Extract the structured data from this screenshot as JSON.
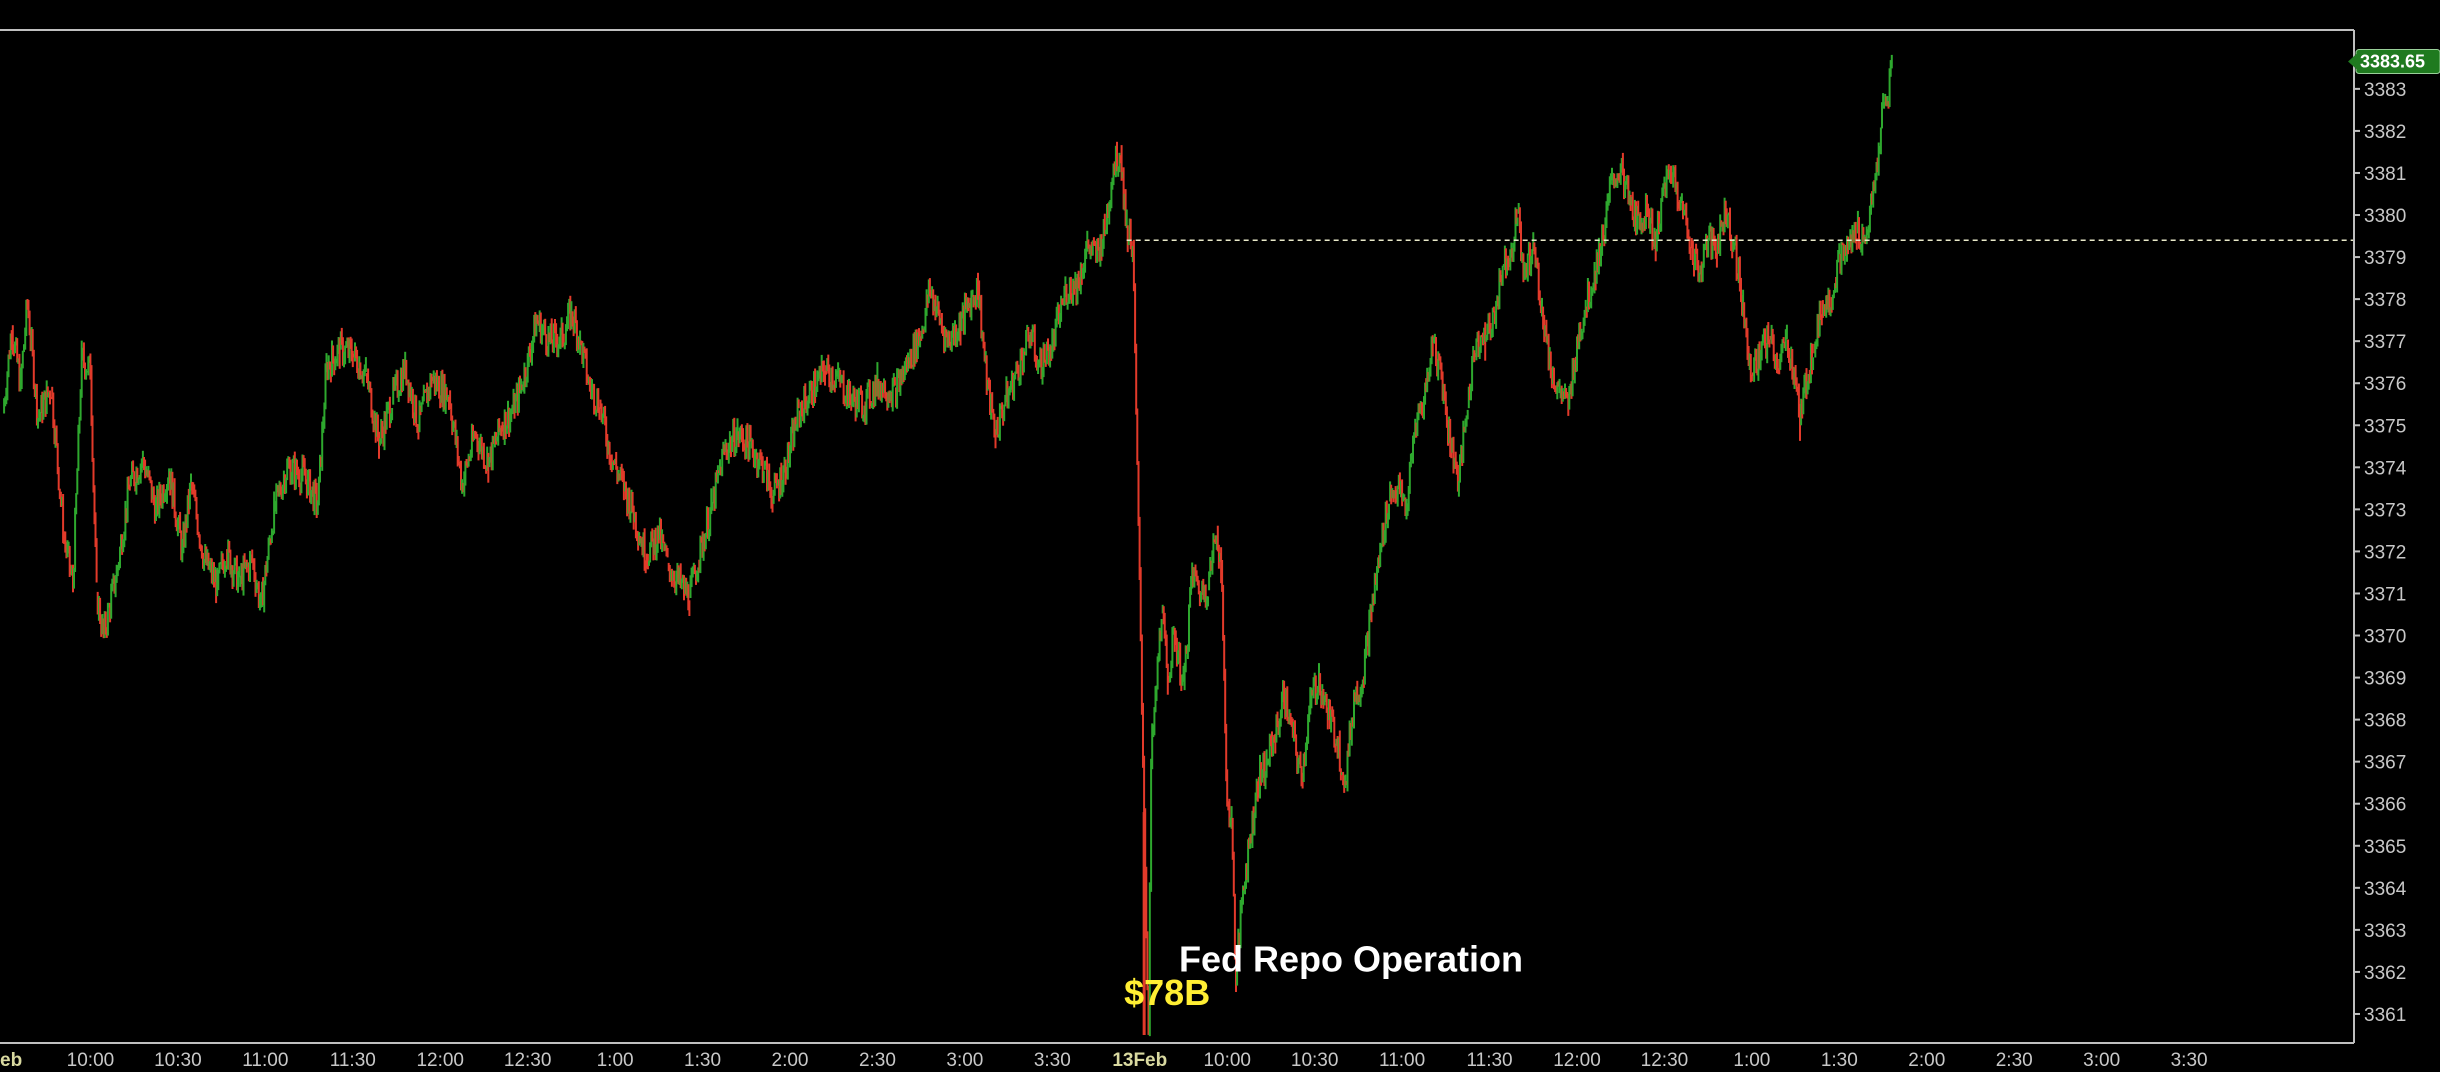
{
  "chart_data": {
    "type": "line",
    "style": "tick-bar",
    "colors": {
      "background": "#000000",
      "up": "#2ea82e",
      "down": "#e23a2a",
      "axis": "#bfbfbf",
      "tick_text": "#c8c8c8",
      "reference_line": "#e8e8c8",
      "price_tag_bg": "#1f7a1f",
      "annotation_amount": "#ffee33",
      "annotation_text": "#ffffff"
    },
    "ylim": [
      3360.5,
      3384.4
    ],
    "y_ticks": [
      3361,
      3362,
      3363,
      3364,
      3365,
      3366,
      3367,
      3368,
      3369,
      3370,
      3371,
      3372,
      3373,
      3374,
      3375,
      3376,
      3377,
      3378,
      3379,
      3380,
      3381,
      3382,
      3383
    ],
    "x_range": [
      0,
      26.92
    ],
    "x_ticks": [
      {
        "x": 0.0,
        "label": "eb",
        "date": true
      },
      {
        "x": 1.0,
        "label": "10:00"
      },
      {
        "x": 2.0,
        "label": "10:30"
      },
      {
        "x": 3.0,
        "label": "11:00"
      },
      {
        "x": 4.0,
        "label": "11:30"
      },
      {
        "x": 5.0,
        "label": "12:00"
      },
      {
        "x": 6.0,
        "label": "12:30"
      },
      {
        "x": 7.0,
        "label": "1:00"
      },
      {
        "x": 8.0,
        "label": "1:30"
      },
      {
        "x": 9.0,
        "label": "2:00"
      },
      {
        "x": 10.0,
        "label": "2:30"
      },
      {
        "x": 11.0,
        "label": "3:00"
      },
      {
        "x": 12.0,
        "label": "3:30"
      },
      {
        "x": 13.0,
        "label": "13Feb",
        "date": true
      },
      {
        "x": 14.0,
        "label": "10:00"
      },
      {
        "x": 15.0,
        "label": "10:30"
      },
      {
        "x": 16.0,
        "label": "11:00"
      },
      {
        "x": 17.0,
        "label": "11:30"
      },
      {
        "x": 18.0,
        "label": "12:00"
      },
      {
        "x": 19.0,
        "label": "12:30"
      },
      {
        "x": 20.0,
        "label": "1:00"
      },
      {
        "x": 21.0,
        "label": "1:30"
      },
      {
        "x": 22.0,
        "label": "2:00"
      },
      {
        "x": 23.0,
        "label": "2:30"
      },
      {
        "x": 24.0,
        "label": "3:00"
      },
      {
        "x": 25.0,
        "label": "3:30"
      }
    ],
    "series": [
      {
        "values": [
          [
            0.0,
            3375.3
          ],
          [
            0.1,
            3377.3
          ],
          [
            0.2,
            3376.0
          ],
          [
            0.28,
            3377.9
          ],
          [
            0.4,
            3375.2
          ],
          [
            0.55,
            3375.9
          ],
          [
            0.7,
            3372.3
          ],
          [
            0.8,
            3371.2
          ],
          [
            0.9,
            3376.6
          ],
          [
            1.0,
            3376.3
          ],
          [
            1.07,
            3371.0
          ],
          [
            1.15,
            3370.0
          ],
          [
            1.3,
            3371.5
          ],
          [
            1.45,
            3373.6
          ],
          [
            1.6,
            3374.2
          ],
          [
            1.75,
            3373.0
          ],
          [
            1.9,
            3373.9
          ],
          [
            2.05,
            3372.0
          ],
          [
            2.15,
            3373.6
          ],
          [
            2.3,
            3371.8
          ],
          [
            2.45,
            3371.2
          ],
          [
            2.55,
            3372.0
          ],
          [
            2.7,
            3371.3
          ],
          [
            2.85,
            3371.8
          ],
          [
            2.95,
            3370.7
          ],
          [
            3.1,
            3373.0
          ],
          [
            3.25,
            3374.0
          ],
          [
            3.45,
            3373.8
          ],
          [
            3.6,
            3373.1
          ],
          [
            3.7,
            3376.4
          ],
          [
            3.85,
            3376.8
          ],
          [
            4.0,
            3376.7
          ],
          [
            4.15,
            3376.2
          ],
          [
            4.3,
            3374.6
          ],
          [
            4.45,
            3375.6
          ],
          [
            4.6,
            3376.4
          ],
          [
            4.75,
            3375.0
          ],
          [
            4.9,
            3376.1
          ],
          [
            5.1,
            3375.7
          ],
          [
            5.25,
            3373.6
          ],
          [
            5.4,
            3374.8
          ],
          [
            5.55,
            3374.1
          ],
          [
            5.7,
            3375.0
          ],
          [
            5.85,
            3375.4
          ],
          [
            6.0,
            3376.5
          ],
          [
            6.1,
            3377.5
          ],
          [
            6.25,
            3377.0
          ],
          [
            6.4,
            3377.1
          ],
          [
            6.5,
            3377.7
          ],
          [
            6.6,
            3377.0
          ],
          [
            6.7,
            3376.0
          ],
          [
            6.82,
            3375.5
          ],
          [
            6.95,
            3374.3
          ],
          [
            7.1,
            3373.5
          ],
          [
            7.2,
            3373.0
          ],
          [
            7.35,
            3371.9
          ],
          [
            7.5,
            3372.4
          ],
          [
            7.6,
            3371.7
          ],
          [
            7.75,
            3371.2
          ],
          [
            7.85,
            3370.9
          ],
          [
            7.95,
            3371.8
          ],
          [
            8.1,
            3373.0
          ],
          [
            8.25,
            3374.4
          ],
          [
            8.4,
            3374.8
          ],
          [
            8.55,
            3374.5
          ],
          [
            8.7,
            3374.0
          ],
          [
            8.8,
            3373.3
          ],
          [
            8.95,
            3374.0
          ],
          [
            9.1,
            3375.3
          ],
          [
            9.25,
            3375.8
          ],
          [
            9.4,
            3376.3
          ],
          [
            9.55,
            3376.1
          ],
          [
            9.7,
            3375.6
          ],
          [
            9.85,
            3375.5
          ],
          [
            10.0,
            3376.0
          ],
          [
            10.2,
            3375.8
          ],
          [
            10.35,
            3376.5
          ],
          [
            10.5,
            3377.2
          ],
          [
            10.6,
            3378.2
          ],
          [
            10.7,
            3377.6
          ],
          [
            10.8,
            3377.0
          ],
          [
            10.95,
            3377.4
          ],
          [
            11.05,
            3377.9
          ],
          [
            11.15,
            3378.3
          ],
          [
            11.25,
            3376.0
          ],
          [
            11.35,
            3374.8
          ],
          [
            11.45,
            3375.5
          ],
          [
            11.6,
            3376.3
          ],
          [
            11.75,
            3377.2
          ],
          [
            11.85,
            3376.4
          ],
          [
            12.0,
            3376.9
          ],
          [
            12.15,
            3378.2
          ],
          [
            12.3,
            3378.4
          ],
          [
            12.4,
            3379.3
          ],
          [
            12.5,
            3379.0
          ],
          [
            12.6,
            3379.6
          ],
          [
            12.7,
            3381.2
          ],
          [
            12.78,
            3381.5
          ],
          [
            12.85,
            3379.7
          ],
          [
            12.92,
            3379.3
          ],
          [
            13.05,
            3365.8
          ],
          [
            13.1,
            3360.5
          ],
          [
            13.13,
            3367.0
          ],
          [
            13.18,
            3368.5
          ],
          [
            13.25,
            3370.6
          ],
          [
            13.32,
            3369.0
          ],
          [
            13.4,
            3370.0
          ],
          [
            13.5,
            3368.8
          ],
          [
            13.6,
            3371.5
          ],
          [
            13.7,
            3371.0
          ],
          [
            13.78,
            3371.2
          ],
          [
            13.88,
            3372.5
          ],
          [
            13.93,
            3371.7
          ],
          [
            14.0,
            3366.0
          ],
          [
            14.05,
            3365.6
          ],
          [
            14.1,
            3361.8
          ],
          [
            14.18,
            3364.0
          ],
          [
            14.25,
            3365.0
          ],
          [
            14.35,
            3366.5
          ],
          [
            14.45,
            3367.0
          ],
          [
            14.55,
            3367.6
          ],
          [
            14.65,
            3368.6
          ],
          [
            14.75,
            3367.6
          ],
          [
            14.85,
            3366.6
          ],
          [
            14.95,
            3368.4
          ],
          [
            15.05,
            3369.0
          ],
          [
            15.15,
            3368.1
          ],
          [
            15.25,
            3367.6
          ],
          [
            15.35,
            3366.5
          ],
          [
            15.45,
            3368.5
          ],
          [
            15.55,
            3369.0
          ],
          [
            15.65,
            3370.6
          ],
          [
            15.75,
            3372.0
          ],
          [
            15.85,
            3373.3
          ],
          [
            15.95,
            3373.5
          ],
          [
            16.05,
            3373.0
          ],
          [
            16.15,
            3375.0
          ],
          [
            16.25,
            3375.6
          ],
          [
            16.35,
            3377.0
          ],
          [
            16.45,
            3376.2
          ],
          [
            16.55,
            3374.6
          ],
          [
            16.65,
            3373.7
          ],
          [
            16.75,
            3375.5
          ],
          [
            16.85,
            3377.1
          ],
          [
            16.95,
            3377.0
          ],
          [
            17.05,
            3377.6
          ],
          [
            17.15,
            3378.8
          ],
          [
            17.25,
            3379.2
          ],
          [
            17.32,
            3380.1
          ],
          [
            17.4,
            3378.5
          ],
          [
            17.5,
            3379.3
          ],
          [
            17.6,
            3377.8
          ],
          [
            17.7,
            3376.3
          ],
          [
            17.8,
            3375.8
          ],
          [
            17.9,
            3375.4
          ],
          [
            18.0,
            3377.0
          ],
          [
            18.1,
            3377.8
          ],
          [
            18.2,
            3378.6
          ],
          [
            18.3,
            3379.5
          ],
          [
            18.4,
            3380.8
          ],
          [
            18.5,
            3381.1
          ],
          [
            18.6,
            3380.3
          ],
          [
            18.7,
            3379.8
          ],
          [
            18.8,
            3380.2
          ],
          [
            18.9,
            3379.3
          ],
          [
            19.0,
            3380.7
          ],
          [
            19.1,
            3381.0
          ],
          [
            19.2,
            3380.2
          ],
          [
            19.3,
            3379.3
          ],
          [
            19.4,
            3378.6
          ],
          [
            19.5,
            3379.4
          ],
          [
            19.6,
            3379.2
          ],
          [
            19.7,
            3380.1
          ],
          [
            19.8,
            3379.3
          ],
          [
            19.9,
            3377.8
          ],
          [
            20.0,
            3376.2
          ],
          [
            20.1,
            3376.7
          ],
          [
            20.2,
            3377.1
          ],
          [
            20.3,
            3376.4
          ],
          [
            20.4,
            3377.0
          ],
          [
            20.5,
            3376.1
          ],
          [
            20.55,
            3375.0
          ],
          [
            20.6,
            3375.8
          ],
          [
            20.7,
            3376.8
          ],
          [
            20.8,
            3377.8
          ],
          [
            20.9,
            3378.0
          ],
          [
            21.0,
            3378.9
          ],
          [
            21.1,
            3379.2
          ],
          [
            21.2,
            3379.6
          ],
          [
            21.3,
            3379.4
          ],
          [
            21.4,
            3380.6
          ],
          [
            21.45,
            3381.5
          ],
          [
            21.5,
            3382.6
          ],
          [
            21.55,
            3382.7
          ],
          [
            21.6,
            3383.65
          ]
        ]
      }
    ],
    "reference_line": {
      "y": 3379.4,
      "x_from": 12.85
    },
    "last_price": {
      "value": 3383.65,
      "label": "3383.65"
    },
    "annotations": [
      {
        "text": "$78B",
        "x": 13.45,
        "y": 3361.5,
        "color": "#ffee33"
      },
      {
        "text": "Fed Repo Operation",
        "x": 15.45,
        "y": 3362.3,
        "color": "#ffffff"
      }
    ]
  }
}
